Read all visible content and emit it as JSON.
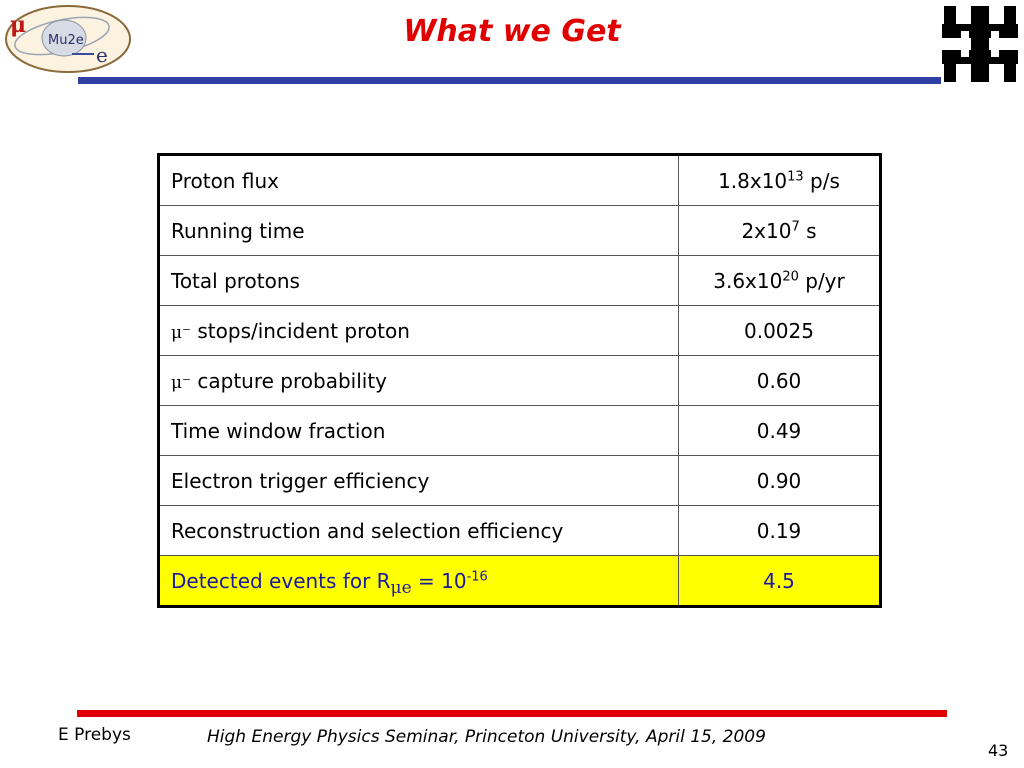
{
  "logo": {
    "mu": "μ",
    "name": "Mu2e",
    "e": "e"
  },
  "title": "What we Get",
  "table": {
    "rows": [
      {
        "label": "Proton flux",
        "val_base": "1.8x10",
        "val_sup": "13",
        "val_suffix": " p/s"
      },
      {
        "label": "Running time",
        "val_base": "2x10",
        "val_sup": "7",
        "val_suffix": " s"
      },
      {
        "label": "Total protons",
        "val_base": "3.6x10",
        "val_sup": "20",
        "val_suffix": " p/yr"
      },
      {
        "label_sym": "μ⁻",
        "label": " stops/incident proton",
        "value": "0.0025"
      },
      {
        "label_sym": "μ⁻",
        "label": " capture probability",
        "value": "0.60"
      },
      {
        "label": "Time window fraction",
        "value": "0.49"
      },
      {
        "label": "Electron trigger efficiency",
        "value": "0.90"
      },
      {
        "label": "Reconstruction and selection efficiency",
        "value": "0.19"
      }
    ],
    "final": {
      "label_pre": "Detected events for R",
      "label_sub": "μe",
      "label_mid": " = 10",
      "label_sup": "-16",
      "value": "4.5"
    }
  },
  "footer": {
    "author": "E Prebys",
    "seminar": "High Energy Physics Seminar, Princeton University, April 15, 2009",
    "page": "43"
  },
  "colors": {
    "title": "#e00000",
    "title_rule": "#2f3fa4",
    "footer_rule": "#e00000",
    "highlight": "#ffff00"
  },
  "icons": [
    "mu2e-logo-icon",
    "fermilab-logo-icon"
  ]
}
